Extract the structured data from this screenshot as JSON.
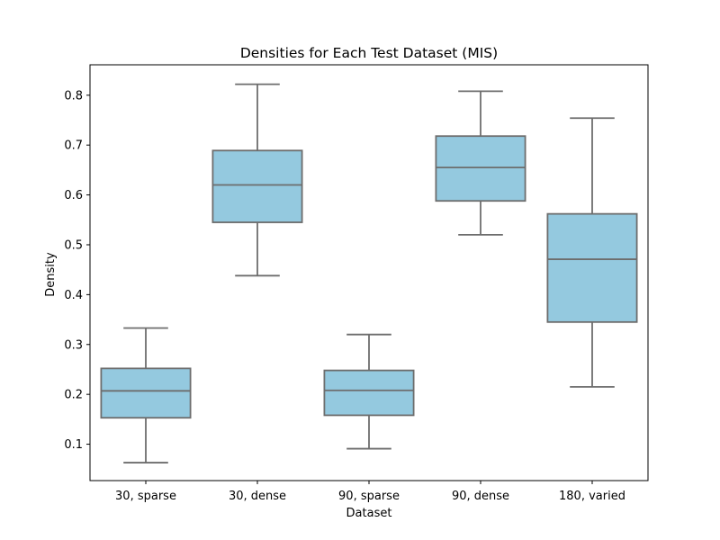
{
  "chart_data": {
    "type": "box",
    "title": "Densities for Each Test Dataset (MIS)",
    "xlabel": "Dataset",
    "ylabel": "Density",
    "ylim": [
      0.027,
      0.861
    ],
    "yticks": [
      "0.1",
      "0.2",
      "0.3",
      "0.4",
      "0.5",
      "0.6",
      "0.7",
      "0.8"
    ],
    "grid": false,
    "legend": "none",
    "colors": {
      "box_fill": "#94c9df",
      "box_edge": "#6d6d6d"
    },
    "categories": [
      "30, sparse",
      "30, dense",
      "90, sparse",
      "90, dense",
      "180, varied"
    ],
    "boxes": [
      {
        "category": "30, sparse",
        "whisker_low": 0.063,
        "q1": 0.153,
        "median": 0.207,
        "q3": 0.252,
        "whisker_high": 0.333
      },
      {
        "category": "30, dense",
        "whisker_low": 0.438,
        "q1": 0.545,
        "median": 0.62,
        "q3": 0.689,
        "whisker_high": 0.822
      },
      {
        "category": "90, sparse",
        "whisker_low": 0.091,
        "q1": 0.158,
        "median": 0.208,
        "q3": 0.248,
        "whisker_high": 0.32
      },
      {
        "category": "90, dense",
        "whisker_low": 0.52,
        "q1": 0.588,
        "median": 0.655,
        "q3": 0.718,
        "whisker_high": 0.808
      },
      {
        "category": "180, varied",
        "whisker_low": 0.215,
        "q1": 0.345,
        "median": 0.471,
        "q3": 0.562,
        "whisker_high": 0.754
      }
    ]
  }
}
